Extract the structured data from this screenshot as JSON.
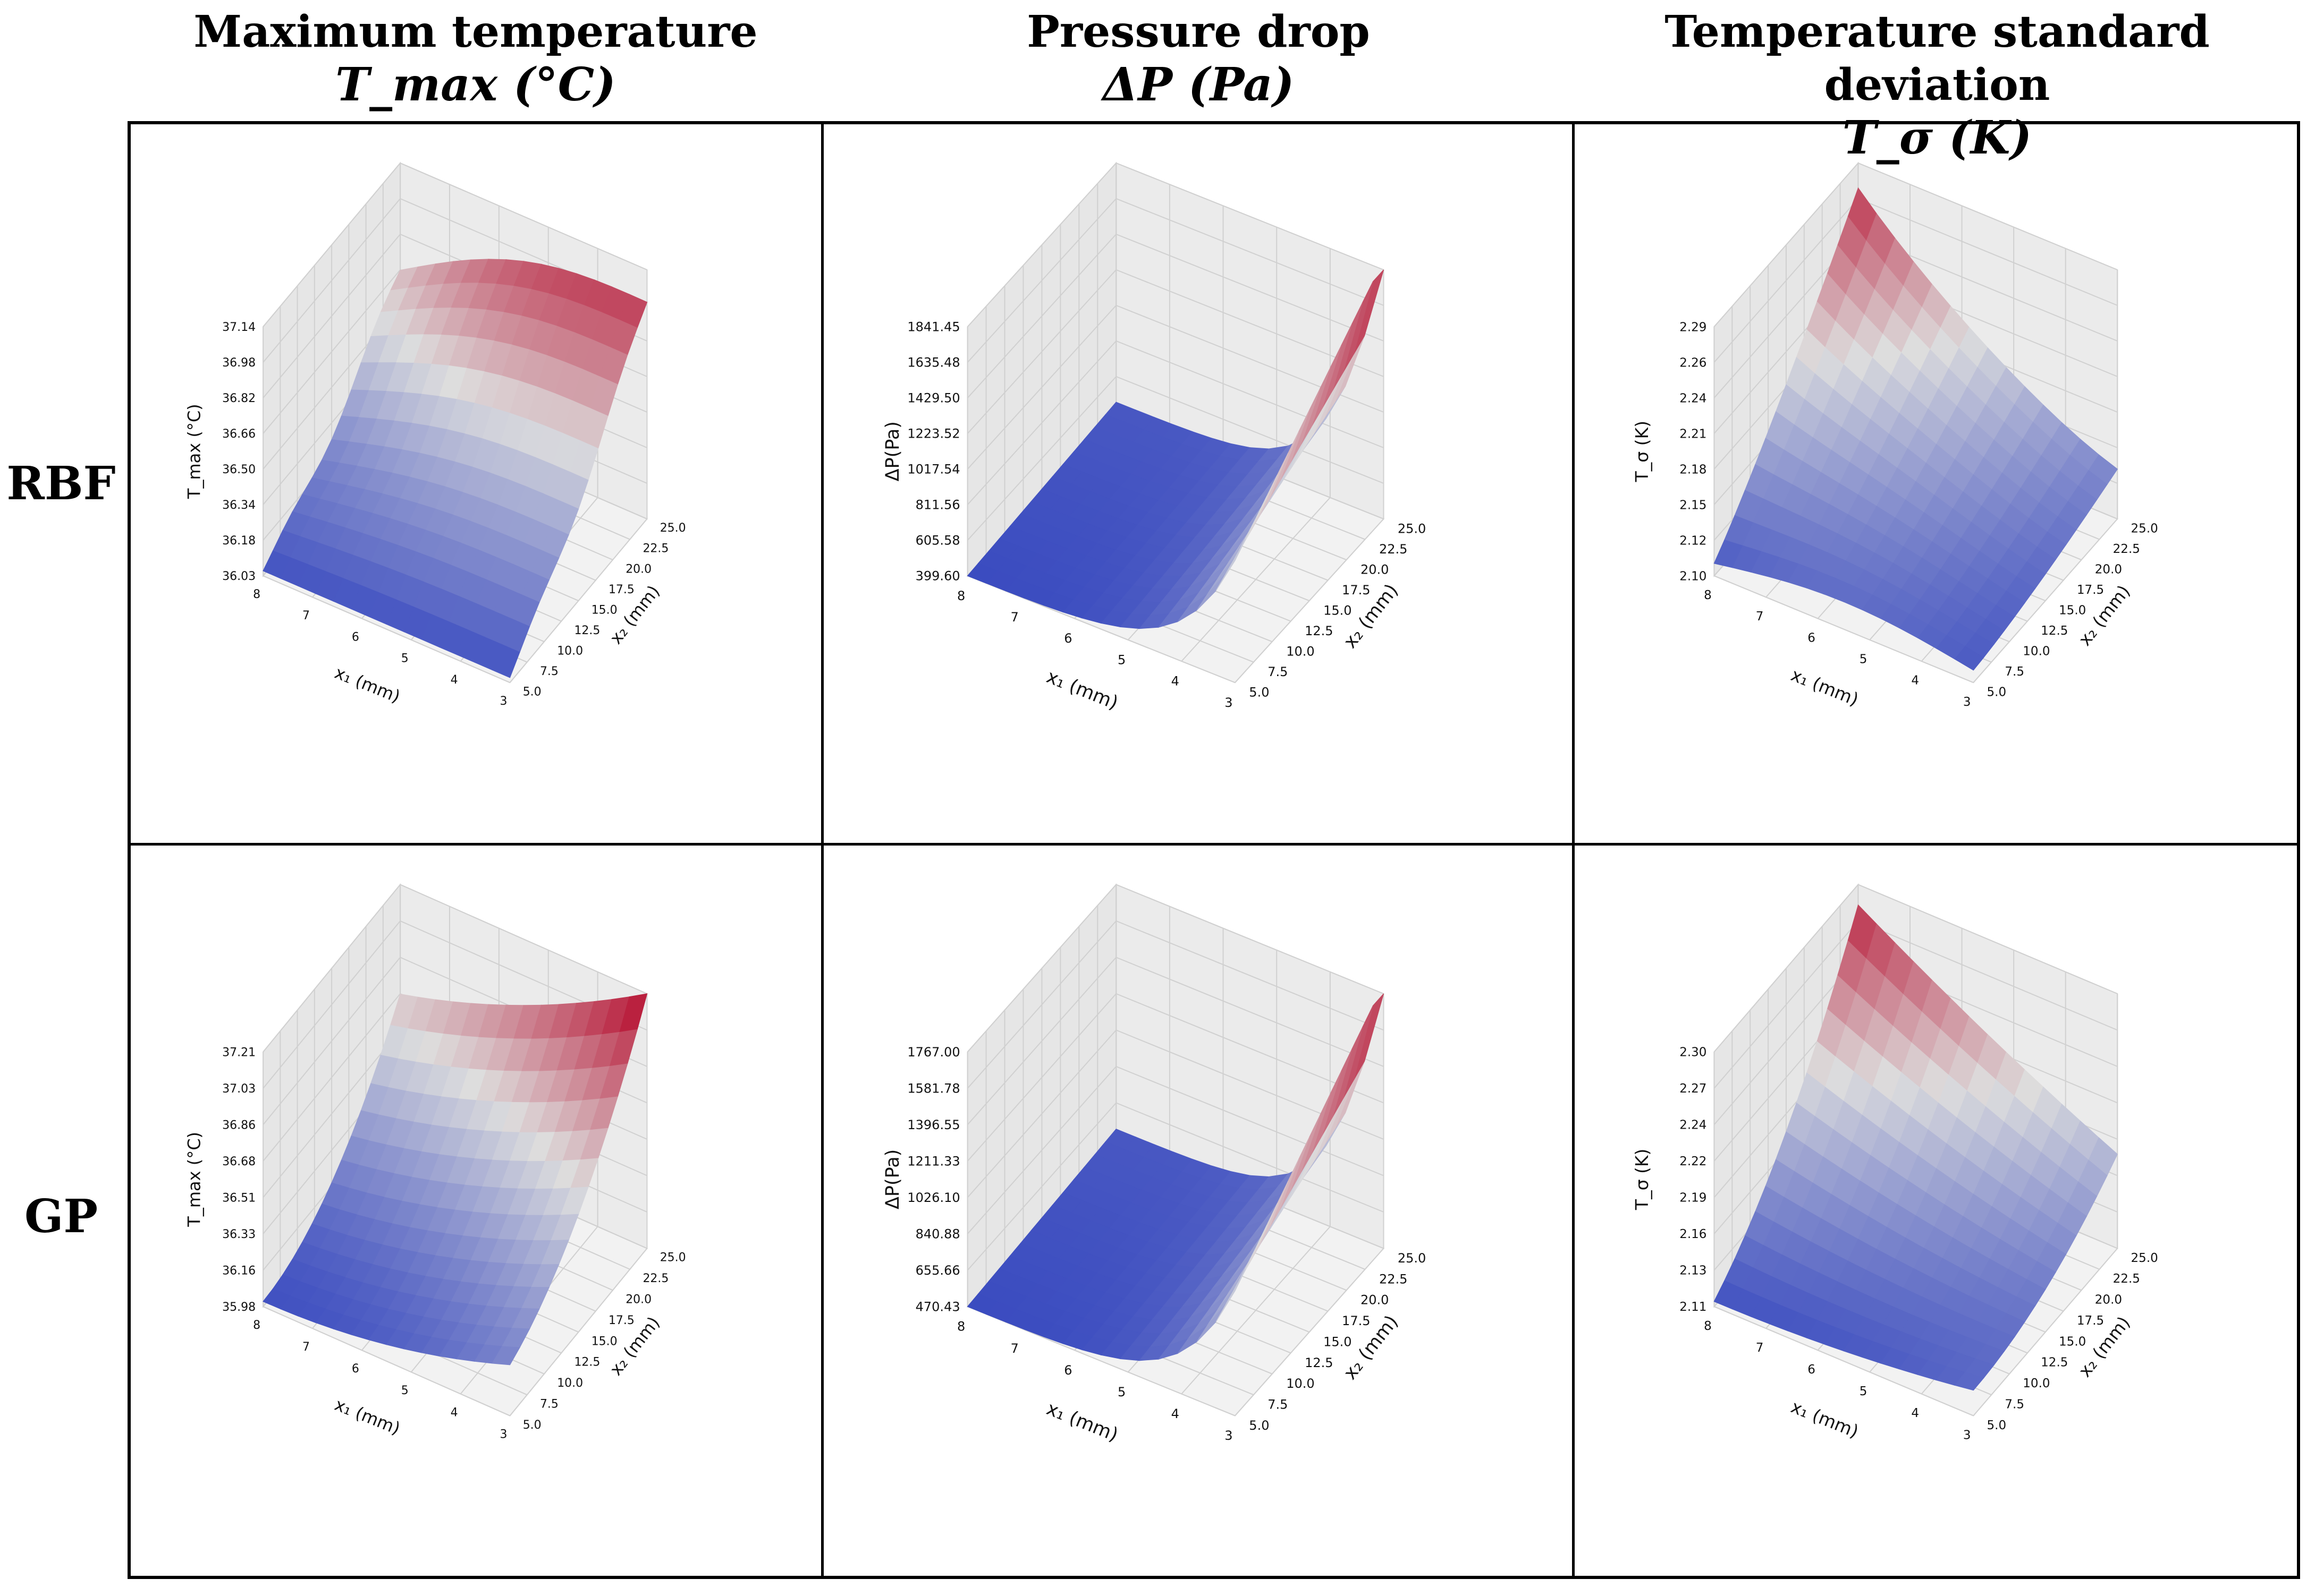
{
  "headers": {
    "col1": {
      "title": "Maximum temperature",
      "symbol": "T_max (°C)"
    },
    "col2": {
      "title": "Pressure drop",
      "symbol": "ΔP (Pa)"
    },
    "col3": {
      "title": "Temperature standard deviation",
      "symbol": "T_σ (K)"
    },
    "row1": "RBF",
    "row2": "GP"
  },
  "colors": {
    "low": "#3b4cc0",
    "mid": "#dddddd",
    "high": "#b40426"
  },
  "chart_data": [
    {
      "type": "surface3d",
      "id": "rbf-tmax",
      "model": "RBF",
      "xlabel": "x₁ (mm)",
      "ylabel": "x₂ (mm)",
      "zlabel": "T_max (°C)",
      "xticks": [
        "8",
        "7",
        "6",
        "5",
        "4",
        "3"
      ],
      "yticks": [
        "5.0",
        "7.5",
        "10.0",
        "12.5",
        "15.0",
        "17.5",
        "20.0",
        "22.5",
        "25.0"
      ],
      "zticks": [
        "36.03",
        "36.18",
        "36.34",
        "36.50",
        "36.66",
        "36.82",
        "36.98",
        "37.14"
      ],
      "zlim": [
        36.03,
        37.14
      ],
      "shape": "rbf-tmax"
    },
    {
      "type": "surface3d",
      "id": "rbf-dp",
      "model": "RBF",
      "xlabel": "x₁ (mm)",
      "ylabel": "x₂ (mm)",
      "zlabel": "ΔP(Pa)",
      "xticks": [
        "8",
        "7",
        "6",
        "5",
        "4",
        "3"
      ],
      "yticks": [
        "5.0",
        "7.5",
        "10.0",
        "12.5",
        "15.0",
        "17.5",
        "20.0",
        "22.5",
        "25.0"
      ],
      "zticks": [
        "399.60",
        "605.58",
        "811.56",
        "1017.54",
        "1223.52",
        "1429.50",
        "1635.48",
        "1841.45"
      ],
      "zlim": [
        399.6,
        1841.45
      ],
      "shape": "dp"
    },
    {
      "type": "surface3d",
      "id": "rbf-tsig",
      "model": "RBF",
      "xlabel": "x₁ (mm)",
      "ylabel": "x₂ (mm)",
      "zlabel": "T_σ (K)",
      "xticks": [
        "8",
        "7",
        "6",
        "5",
        "4",
        "3"
      ],
      "yticks": [
        "5.0",
        "7.5",
        "10.0",
        "12.5",
        "15.0",
        "17.5",
        "20.0",
        "22.5",
        "25.0"
      ],
      "zticks": [
        "2.10",
        "2.12",
        "2.15",
        "2.18",
        "2.21",
        "2.24",
        "2.26",
        "2.29"
      ],
      "zlim": [
        2.1,
        2.29
      ],
      "shape": "rbf-tsig"
    },
    {
      "type": "surface3d",
      "id": "gp-tmax",
      "model": "GP",
      "xlabel": "x₁ (mm)",
      "ylabel": "x₂ (mm)",
      "zlabel": "T_max (°C)",
      "xticks": [
        "8",
        "7",
        "6",
        "5",
        "4",
        "3"
      ],
      "yticks": [
        "5.0",
        "7.5",
        "10.0",
        "12.5",
        "15.0",
        "17.5",
        "20.0",
        "22.5",
        "25.0"
      ],
      "zticks": [
        "35.98",
        "36.16",
        "36.33",
        "36.51",
        "36.68",
        "36.86",
        "37.03",
        "37.21"
      ],
      "zlim": [
        35.98,
        37.21
      ],
      "shape": "gp-tmax"
    },
    {
      "type": "surface3d",
      "id": "gp-dp",
      "model": "GP",
      "xlabel": "x₁ (mm)",
      "ylabel": "x₂ (mm)",
      "zlabel": "ΔP(Pa)",
      "xticks": [
        "8",
        "7",
        "6",
        "5",
        "4",
        "3"
      ],
      "yticks": [
        "5.0",
        "7.5",
        "10.0",
        "12.5",
        "15.0",
        "17.5",
        "20.0",
        "22.5",
        "25.0"
      ],
      "zticks": [
        "470.43",
        "655.66",
        "840.88",
        "1026.10",
        "1211.33",
        "1396.55",
        "1581.78",
        "1767.00"
      ],
      "zlim": [
        470.43,
        1767.0
      ],
      "shape": "dp"
    },
    {
      "type": "surface3d",
      "id": "gp-tsig",
      "model": "GP",
      "xlabel": "x₁ (mm)",
      "ylabel": "x₂ (mm)",
      "zlabel": "T_σ (K)",
      "xticks": [
        "8",
        "7",
        "6",
        "5",
        "4",
        "3"
      ],
      "yticks": [
        "5.0",
        "7.5",
        "10.0",
        "12.5",
        "15.0",
        "17.5",
        "20.0",
        "22.5",
        "25.0"
      ],
      "zticks": [
        "2.11",
        "2.13",
        "2.16",
        "2.19",
        "2.22",
        "2.24",
        "2.27",
        "2.30"
      ],
      "zlim": [
        2.11,
        2.3
      ],
      "shape": "gp-tsig"
    }
  ]
}
